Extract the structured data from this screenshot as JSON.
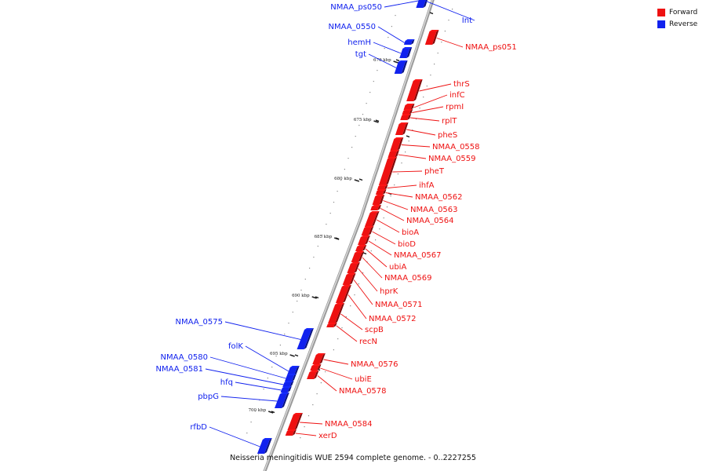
{
  "caption": "Neisseria meningitidis WUE 2594 complete genome. - 0..2227255",
  "legend": [
    {
      "label": "Forward",
      "color": "#ee1111"
    },
    {
      "label": "Reverse",
      "color": "#1122ee"
    }
  ],
  "ticks": [
    "670 kbp",
    "675 kbp",
    "680 kbp",
    "685 kbp",
    "690 kbp",
    "695 kbp",
    "700 kbp"
  ],
  "features": [
    {
      "name": "NMAA_ps050",
      "strand": "reverse"
    },
    {
      "name": "Int",
      "strand": "reverse"
    },
    {
      "name": "NMAA_0550",
      "strand": "reverse"
    },
    {
      "name": "NMAA_ps051",
      "strand": "forward"
    },
    {
      "name": "hemH",
      "strand": "reverse"
    },
    {
      "name": "tgt",
      "strand": "reverse"
    },
    {
      "name": "thrS",
      "strand": "forward"
    },
    {
      "name": "infC",
      "strand": "forward"
    },
    {
      "name": "rpmI",
      "strand": "forward"
    },
    {
      "name": "rplT",
      "strand": "forward"
    },
    {
      "name": "pheS",
      "strand": "forward"
    },
    {
      "name": "NMAA_0558",
      "strand": "forward"
    },
    {
      "name": "NMAA_0559",
      "strand": "forward"
    },
    {
      "name": "pheT",
      "strand": "forward"
    },
    {
      "name": "ihfA",
      "strand": "forward"
    },
    {
      "name": "NMAA_0562",
      "strand": "forward"
    },
    {
      "name": "NMAA_0563",
      "strand": "forward"
    },
    {
      "name": "NMAA_0564",
      "strand": "forward"
    },
    {
      "name": "bioA",
      "strand": "forward"
    },
    {
      "name": "bioD",
      "strand": "forward"
    },
    {
      "name": "NMAA_0567",
      "strand": "forward"
    },
    {
      "name": "ubiA",
      "strand": "forward"
    },
    {
      "name": "NMAA_0569",
      "strand": "forward"
    },
    {
      "name": "hprK",
      "strand": "forward"
    },
    {
      "name": "NMAA_0571",
      "strand": "forward"
    },
    {
      "name": "NMAA_0572",
      "strand": "forward"
    },
    {
      "name": "scpB",
      "strand": "forward"
    },
    {
      "name": "recN",
      "strand": "forward"
    },
    {
      "name": "NMAA_0575",
      "strand": "reverse"
    },
    {
      "name": "folK",
      "strand": "reverse"
    },
    {
      "name": "NMAA_0580",
      "strand": "reverse"
    },
    {
      "name": "NMAA_0581",
      "strand": "reverse"
    },
    {
      "name": "hfq",
      "strand": "reverse"
    },
    {
      "name": "pbpG",
      "strand": "reverse"
    },
    {
      "name": "NMAA_0576",
      "strand": "forward"
    },
    {
      "name": "ubiE",
      "strand": "forward"
    },
    {
      "name": "NMAA_0578",
      "strand": "forward"
    },
    {
      "name": "NMAA_0584",
      "strand": "forward"
    },
    {
      "name": "xerD",
      "strand": "forward"
    },
    {
      "name": "rfbD",
      "strand": "reverse"
    }
  ]
}
